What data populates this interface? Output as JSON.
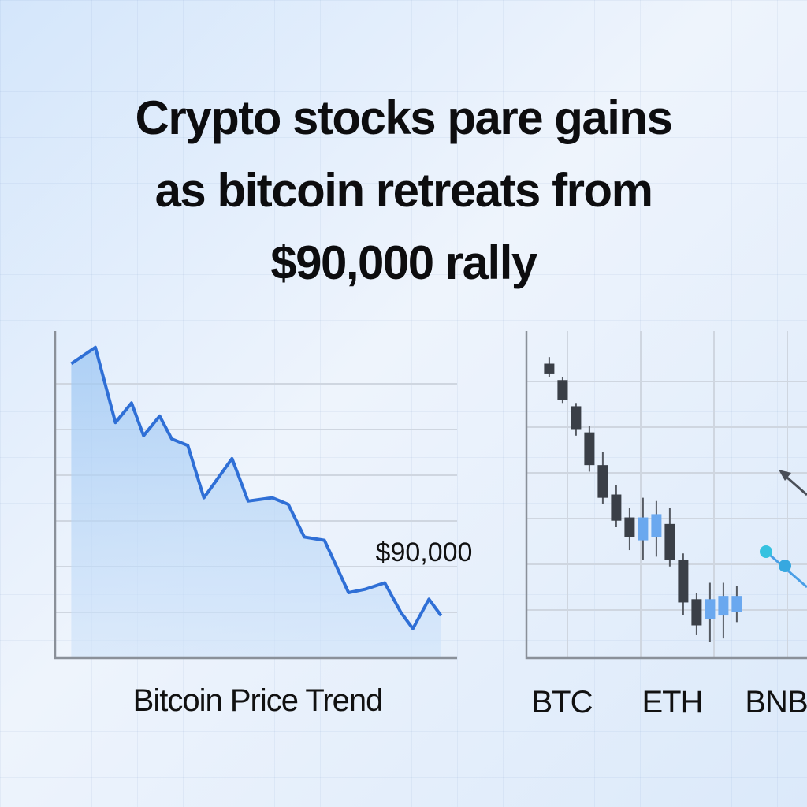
{
  "headline": [
    "Crypto stocks pare gains",
    "as bitcoin retreats from",
    "$90,000 rally"
  ],
  "chart_data": [
    {
      "type": "line",
      "label": "Bitcoin Price Trend",
      "annotation": "$90,000",
      "color": "#2f6fd6",
      "grid": true,
      "xlim": [
        0,
        100
      ],
      "ylim": [
        0,
        100
      ],
      "x": [
        4,
        10,
        15,
        19,
        22,
        26,
        29,
        33,
        37,
        44,
        48,
        54,
        58,
        62,
        67,
        73,
        77,
        82,
        86,
        89,
        93,
        96
      ],
      "values": [
        90,
        95,
        72,
        78,
        68,
        74,
        67,
        65,
        49,
        61,
        48,
        49,
        47,
        37,
        36,
        20,
        21,
        23,
        14,
        9,
        18,
        13
      ]
    },
    {
      "type": "candlestick",
      "categories": [
        "BTC",
        "ETH",
        "BNB"
      ],
      "grid": true,
      "up_color": "#6aa8ef",
      "down_color": "#3a3f47",
      "xlim": [
        -0.7,
        24.3
      ],
      "ylim": [
        0,
        100
      ],
      "x": [
        1,
        2,
        3,
        4,
        5,
        6,
        7,
        8,
        9,
        10,
        11,
        12,
        13,
        14,
        15
      ],
      "open": [
        90,
        85,
        77,
        69,
        59,
        50,
        43,
        36,
        37,
        41,
        30,
        18,
        12,
        13,
        14
      ],
      "close": [
        87,
        79,
        70,
        59,
        49,
        42,
        37,
        43,
        44,
        30,
        17,
        10,
        18,
        19,
        19
      ],
      "high": [
        92,
        86,
        78,
        71,
        63,
        53,
        46,
        49,
        48,
        46,
        32,
        20,
        23,
        23,
        22
      ],
      "low": [
        86,
        78,
        68,
        57,
        47,
        40,
        33,
        30,
        31,
        28,
        13,
        7,
        5,
        6,
        11
      ]
    }
  ]
}
